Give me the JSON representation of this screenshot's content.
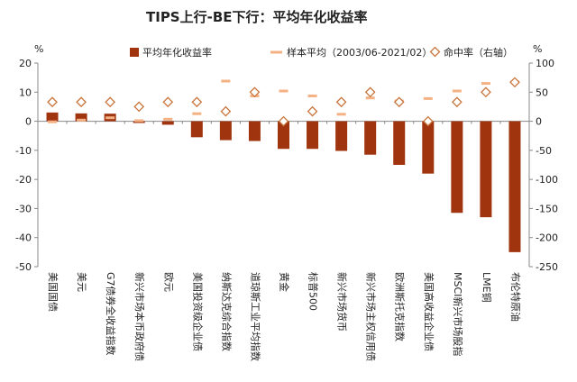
{
  "chart_data": {
    "type": "bar",
    "title": "TIPS上行-BE下行：平均年化收益率",
    "left_axis_unit": "%",
    "right_axis_unit": "%",
    "ylim_left": [
      -50,
      20
    ],
    "yticks_left": [
      20,
      10,
      0,
      -10,
      -20,
      -30,
      -40,
      -50
    ],
    "ylim_right": [
      -250,
      100
    ],
    "yticks_right": [
      100,
      50,
      0,
      -50,
      -100,
      -150,
      -200,
      -250
    ],
    "grid": false,
    "legend_position": "top",
    "categories": [
      "美国国债",
      "美元",
      "G7债券全收益指数",
      "新兴市场本币政府债",
      "欧元",
      "美国投资级企业债",
      "纳斯达克综合指数",
      "道琼斯工业平均指数",
      "黄金",
      "标普500",
      "新兴市场货币",
      "新兴市场主权信用债",
      "欧洲斯托克指数",
      "美国高收益企业债",
      "MSCI新兴市场股指",
      "LME铜",
      "布伦特原油"
    ],
    "series": [
      {
        "name": "平均年化收益率",
        "kind": "bar",
        "axis": "left",
        "color": "#a0340f",
        "values": [
          3.0,
          2.7,
          2.6,
          -0.6,
          -1.2,
          -5.5,
          -6.5,
          -6.8,
          -9.5,
          -9.5,
          -10.2,
          -11.5,
          -15.0,
          -18.0,
          -31.5,
          -33.0,
          -45.0
        ]
      },
      {
        "name": "样本平均（2003/06-2021/02）",
        "kind": "dash",
        "axis": "left",
        "color": "#f4b183",
        "values": [
          -0.2,
          0.4,
          1.2,
          0.2,
          0.7,
          2.6,
          13.8,
          8.7,
          10.4,
          8.7,
          2.4,
          8.0,
          7.0,
          7.8,
          10.4,
          13.0,
          13.5
        ]
      },
      {
        "name": "命中率（右轴）",
        "kind": "diamond",
        "axis": "right",
        "color": "#c9743a",
        "values": [
          33,
          33,
          33,
          25,
          33,
          33,
          17,
          50,
          0,
          17,
          33,
          50,
          33,
          0,
          33,
          50,
          67
        ]
      }
    ]
  }
}
